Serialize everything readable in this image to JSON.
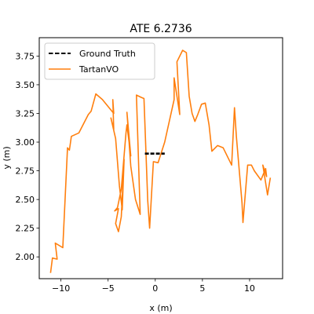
{
  "chart_data": {
    "type": "line",
    "title": "ATE 6.2736",
    "xlabel": "x (m)",
    "ylabel": "y (m)",
    "xlim": [
      -12.3,
      13.5
    ],
    "ylim": [
      1.81,
      3.91
    ],
    "xticks": [
      -10,
      -5,
      0,
      5,
      10
    ],
    "xtick_labels": [
      "−10",
      "−5",
      "0",
      "5",
      "10"
    ],
    "yticks": [
      2.0,
      2.25,
      2.5,
      2.75,
      3.0,
      3.25,
      3.5,
      3.75
    ],
    "ytick_labels": [
      "2.00",
      "2.25",
      "2.50",
      "2.75",
      "3.00",
      "3.25",
      "3.50",
      "3.75"
    ],
    "grid": false,
    "legend_position": "upper-left",
    "series": [
      {
        "name": "Ground Truth",
        "color": "#000000",
        "style": "dashed",
        "x": [
          -1.1,
          -0.5,
          0.0,
          0.5,
          1.0
        ],
        "y": [
          2.9,
          2.9,
          2.9,
          2.9,
          2.9
        ]
      },
      {
        "name": "TartanVO",
        "color": "#ff7f0e",
        "style": "solid",
        "x": [
          -11.1,
          -10.9,
          -10.4,
          -10.6,
          -9.8,
          -9.3,
          -9.1,
          -8.9,
          -8.1,
          -7.1,
          -6.8,
          -6.3,
          -5.6,
          -5.2,
          -4.4,
          -4.5,
          -4.4,
          -4.7,
          -4.2,
          -3.8,
          -3.5,
          -3.3,
          -3.6,
          -3.9,
          -4.2,
          -3.9,
          -4.3,
          -4.0,
          -3.6,
          -3.1,
          -3.0,
          -2.6,
          -3.0,
          -2.6,
          -2.1,
          -1.6,
          -2.0,
          -1.5,
          -1.2,
          -0.8,
          -0.6,
          -0.2,
          0.3,
          1.0,
          2.0,
          2.0,
          2.6,
          2.3,
          2.9,
          3.3,
          3.6,
          3.9,
          4.2,
          4.5,
          4.9,
          5.3,
          5.7,
          6.0,
          6.6,
          7.2,
          8.1,
          8.4,
          8.6,
          9.2,
          9.3,
          9.8,
          10.2,
          10.5,
          11.2,
          11.7,
          11.8,
          11.4,
          11.9,
          12.2
        ],
        "y": [
          1.86,
          1.99,
          1.98,
          2.12,
          2.08,
          2.95,
          2.93,
          3.05,
          3.08,
          3.24,
          3.27,
          3.42,
          3.37,
          3.33,
          3.25,
          3.37,
          3.11,
          3.21,
          3.03,
          2.62,
          2.41,
          2.85,
          2.35,
          2.22,
          2.29,
          2.42,
          2.4,
          2.43,
          2.59,
          3.08,
          3.15,
          2.88,
          3.26,
          2.79,
          2.5,
          2.37,
          3.41,
          3.39,
          3.38,
          2.49,
          2.25,
          2.83,
          2.82,
          3.0,
          3.37,
          3.56,
          3.24,
          3.7,
          3.8,
          3.78,
          3.4,
          3.25,
          3.18,
          3.24,
          3.33,
          3.34,
          3.15,
          2.92,
          2.97,
          2.95,
          2.8,
          3.3,
          3.05,
          2.47,
          2.3,
          2.8,
          2.8,
          2.75,
          2.67,
          2.77,
          2.7,
          2.8,
          2.54,
          2.69
        ]
      }
    ]
  }
}
